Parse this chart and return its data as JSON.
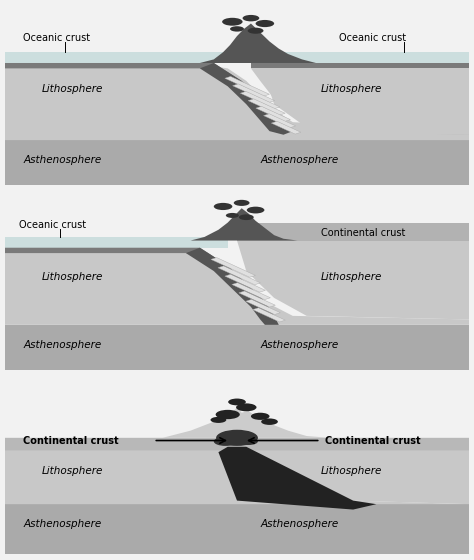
{
  "colors": {
    "white": "#ffffff",
    "light_gray": "#d2d2d2",
    "mid_gray": "#b8b8b8",
    "dark_gray": "#888888",
    "darker_gray": "#555555",
    "darkest": "#333333",
    "very_dark": "#222222",
    "ocean_crust": "#7a7a7a",
    "litho": "#c8c8c8",
    "asthen": "#aaaaaa",
    "ocean_water": "#ccdede",
    "cont_crust": "#b0b0b0",
    "magma_white": "#e8e8e8",
    "bg": "#f2f2f2"
  },
  "labels": {
    "oceanic": "Oceanic crust",
    "continental": "Continental crust",
    "lithosphere": "Lithosphere",
    "asthenosphere": "Asthenosphere"
  }
}
